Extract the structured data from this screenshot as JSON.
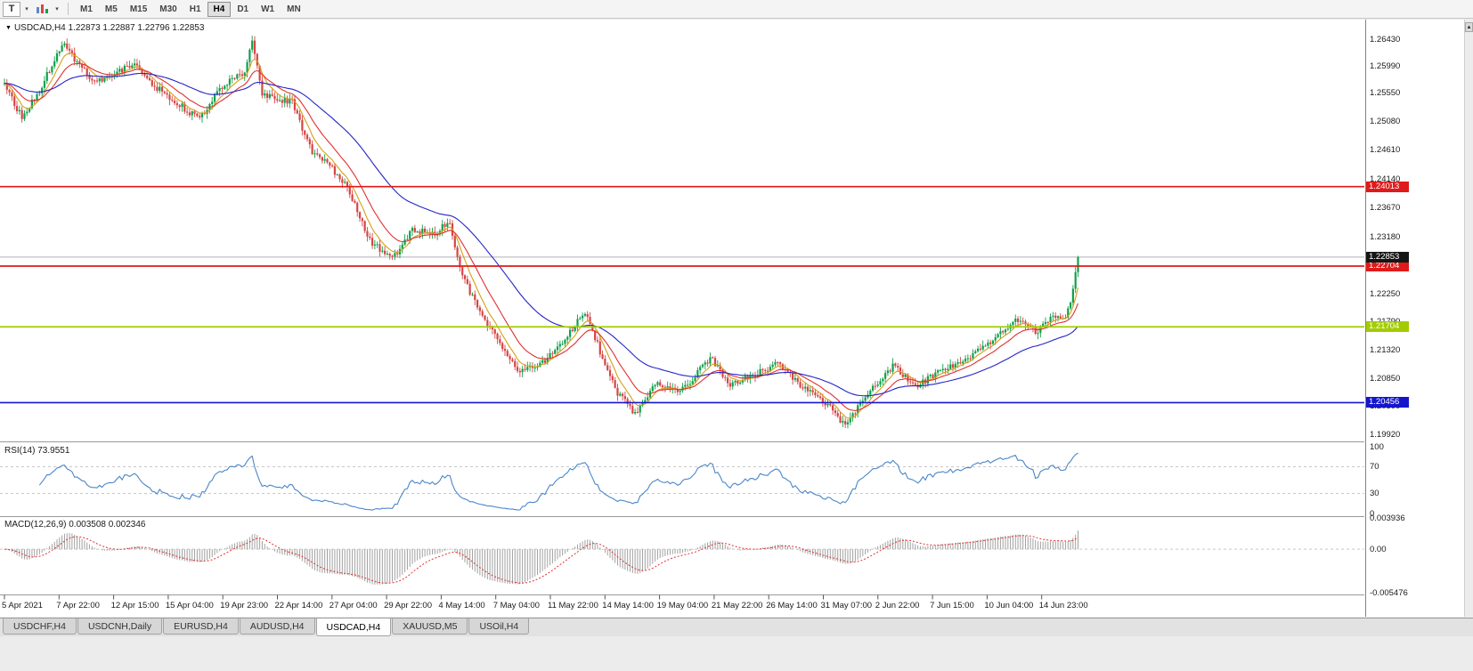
{
  "icons": {
    "caret_down": "▾",
    "quote_arrow": "▼",
    "scroll_up_arrow": "▲"
  },
  "toolbar": {
    "template_button_label": "T",
    "timeframes": [
      "M1",
      "M5",
      "M15",
      "M30",
      "H1",
      "H4",
      "D1",
      "W1",
      "MN"
    ],
    "active_timeframe": "H4"
  },
  "quote_header": {
    "display": "USDCAD,H4 1.22873 1.22887 1.22796 1.22853",
    "symbol": "USDCAD,H4",
    "open": "1.22873",
    "high": "1.22887",
    "low": "1.22796",
    "close": "1.22853"
  },
  "chart_data": {
    "type": "candlestick",
    "symbol": "USDCAD",
    "timeframe": "H4",
    "price_range": {
      "top": 1.2672,
      "bottom": 1.19832
    },
    "y_ticks": [
      "1.26430",
      "1.25990",
      "1.25550",
      "1.25080",
      "1.24610",
      "1.24140",
      "1.23670",
      "1.23180",
      "1.22720",
      "1.22250",
      "1.21790",
      "1.21320",
      "1.20850",
      "1.20390",
      "1.19920"
    ],
    "x_labels": [
      "5 Apr 2021",
      "7 Apr 22:00",
      "12 Apr 15:00",
      "15 Apr 04:00",
      "19 Apr 23:00",
      "22 Apr 14:00",
      "27 Apr 04:00",
      "29 Apr 22:00",
      "4 May 14:00",
      "7 May 04:00",
      "11 May 22:00",
      "14 May 14:00",
      "19 May 04:00",
      "21 May 22:00",
      "26 May 14:00",
      "31 May 07:00",
      "2 Jun 22:00",
      "7 Jun 15:00",
      "10 Jun 04:00",
      "14 Jun 23:00"
    ],
    "horizontal_lines": [
      {
        "value": 1.24013,
        "label": "1.24013",
        "color": "#e01a1a"
      },
      {
        "value": 1.22704,
        "label": "1.22704",
        "color": "#e01a1a"
      },
      {
        "value": 1.21704,
        "label": "1.21704",
        "color": "#a3cc00"
      },
      {
        "value": 1.20456,
        "label": "1.20456",
        "color": "#1515cc"
      }
    ],
    "current_price": {
      "value": 1.22853,
      "label": "1.22853",
      "bg": "#151515",
      "line_color": "#b0b0b0"
    },
    "candles": {
      "count": 430,
      "up_color": "#0fa04a",
      "down_color": "#d64545",
      "close_anchors": [
        [
          0,
          1.257
        ],
        [
          7,
          1.2515
        ],
        [
          14,
          1.256
        ],
        [
          23,
          1.2638
        ],
        [
          30,
          1.26
        ],
        [
          36,
          1.2572
        ],
        [
          43,
          1.2586
        ],
        [
          52,
          1.2604
        ],
        [
          59,
          1.257
        ],
        [
          68,
          1.2542
        ],
        [
          78,
          1.2512
        ],
        [
          87,
          1.2566
        ],
        [
          96,
          1.259
        ],
        [
          99,
          1.2642
        ],
        [
          103,
          1.2552
        ],
        [
          108,
          1.2546
        ],
        [
          115,
          1.254
        ],
        [
          123,
          1.2456
        ],
        [
          129,
          1.2442
        ],
        [
          137,
          1.24
        ],
        [
          146,
          1.2312
        ],
        [
          155,
          1.2282
        ],
        [
          163,
          1.233
        ],
        [
          172,
          1.2326
        ],
        [
          178,
          1.2342
        ],
        [
          183,
          1.2252
        ],
        [
          192,
          1.2182
        ],
        [
          197,
          1.2152
        ],
        [
          206,
          1.2096
        ],
        [
          215,
          1.2112
        ],
        [
          224,
          1.2152
        ],
        [
          232,
          1.2196
        ],
        [
          238,
          1.213
        ],
        [
          245,
          1.2062
        ],
        [
          252,
          1.2026
        ],
        [
          261,
          1.208
        ],
        [
          270,
          1.2062
        ],
        [
          282,
          1.212
        ],
        [
          290,
          1.2076
        ],
        [
          300,
          1.2092
        ],
        [
          309,
          1.211
        ],
        [
          318,
          1.2072
        ],
        [
          329,
          1.2042
        ],
        [
          336,
          1.2006
        ],
        [
          345,
          1.2062
        ],
        [
          355,
          1.2106
        ],
        [
          364,
          1.2072
        ],
        [
          375,
          1.21
        ],
        [
          385,
          1.2116
        ],
        [
          396,
          1.2152
        ],
        [
          405,
          1.2182
        ],
        [
          412,
          1.2162
        ],
        [
          419,
          1.2186
        ],
        [
          424,
          1.218
        ],
        [
          427,
          1.2232
        ],
        [
          429,
          1.22853
        ]
      ]
    },
    "moving_averages": [
      {
        "name": "fast-ma",
        "period": 7,
        "color": "#d4a017"
      },
      {
        "name": "mid-ma",
        "period": 16,
        "color": "#e03030"
      },
      {
        "name": "slow-ma",
        "period": 48,
        "color": "#2424c8"
      }
    ],
    "indicators": {
      "rsi": {
        "display": "RSI(14) 73.9551",
        "label": "RSI(14)",
        "value": "73.9551",
        "period": 14,
        "levels": [
          70,
          30
        ],
        "range": [
          0,
          100
        ],
        "color": "#4a86c8",
        "axis": [
          {
            "text": "100",
            "value": 100
          },
          {
            "text": "70",
            "value": 70
          },
          {
            "text": "30",
            "value": 30
          },
          {
            "text": "0",
            "value": 0
          }
        ]
      },
      "macd": {
        "display": "MACD(12,26,9) 0.003508 0.002346",
        "label": "MACD(12,26,9)",
        "values": [
          "0.003508",
          "0.002346"
        ],
        "fast": 12,
        "slow": 26,
        "signal": 9,
        "range": [
          -0.005476,
          0.003936
        ],
        "histogram_color": "#a0a0a0",
        "signal_color": "#e03030",
        "axis": [
          {
            "text": "0.003936",
            "value": 0.003936
          },
          {
            "text": "0.00",
            "value": 0
          },
          {
            "text": "-0.005476",
            "value": -0.005476
          }
        ]
      }
    }
  },
  "bottom_tabs": {
    "tabs": [
      "USDCHF,H4",
      "USDCNH,Daily",
      "EURUSD,H4",
      "AUDUSD,H4",
      "USDCAD,H4",
      "XAUUSD,M5",
      "USOil,H4"
    ],
    "active": "USDCAD,H4"
  }
}
